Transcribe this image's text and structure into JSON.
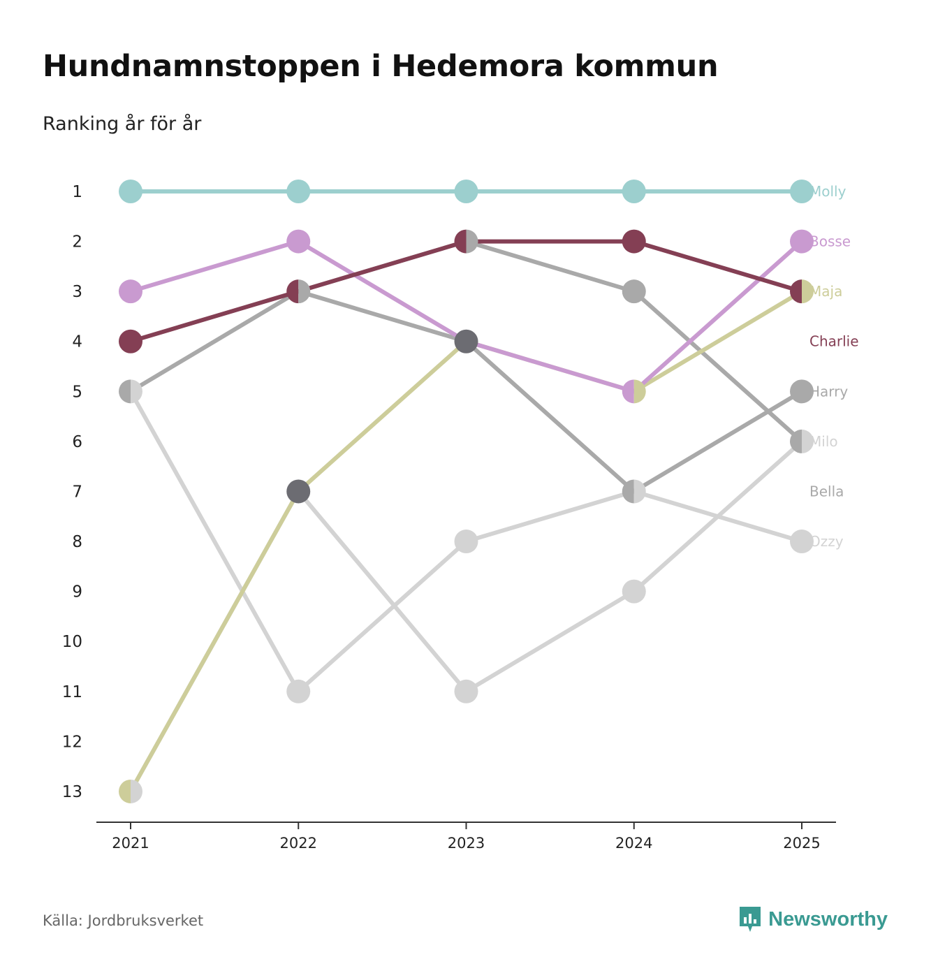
{
  "page": {
    "title": "Hundnamnstoppen i Hedemora kommun",
    "subtitle": "Ranking år för år",
    "source": "Källa: Jordbruksverket",
    "brand": "Newsworthy",
    "brand_icon": "newsworthy-logo-icon",
    "brand_color": "#3a9a92"
  },
  "chart_data": {
    "type": "line",
    "title": "Hundnamnstoppen i Hedemora kommun",
    "subtitle": "Ranking år för år",
    "xlabel": "",
    "ylabel": "",
    "x": [
      2021,
      2022,
      2023,
      2024,
      2025
    ],
    "y_ticks": [
      1,
      2,
      3,
      4,
      5,
      6,
      7,
      8,
      9,
      10,
      11,
      12,
      13
    ],
    "ylim": [
      1,
      13
    ],
    "y_inverted": true,
    "grid": false,
    "series": [
      {
        "name": "Ozzy",
        "color": "#d3d3d3",
        "values": [
          5,
          11,
          8,
          7,
          8
        ]
      },
      {
        "name": "Bella",
        "color": "#d3d3d3",
        "values": [
          13,
          7,
          11,
          9,
          6
        ]
      },
      {
        "name": "Milo",
        "color": "#a9a9a9",
        "values": [
          null,
          3,
          2,
          3,
          6
        ]
      },
      {
        "name": "Harry",
        "color": "#a9a9a9",
        "values": [
          5,
          3,
          4,
          7,
          5
        ]
      },
      {
        "name": "Maja",
        "color": "#cdcd9a",
        "values": [
          13,
          7,
          4,
          5,
          3
        ]
      },
      {
        "name": "Bosse",
        "color": "#c99ad0",
        "values": [
          3,
          2,
          4,
          5,
          2
        ]
      },
      {
        "name": "Charlie",
        "color": "#843f54",
        "values": [
          4,
          3,
          2,
          2,
          3
        ]
      },
      {
        "name": "Molly",
        "color": "#9ccfce",
        "values": [
          1,
          1,
          1,
          1,
          1
        ]
      }
    ],
    "special_markers": [
      {
        "x": 2022,
        "y": 7,
        "color": "#6c6c72"
      },
      {
        "x": 2023,
        "y": 4,
        "color": "#6c6c72"
      }
    ],
    "end_labels": [
      {
        "name": "Molly",
        "rank": 1,
        "color": "#9ccfce"
      },
      {
        "name": "Bosse",
        "rank": 2,
        "color": "#c99ad0"
      },
      {
        "name": "Maja",
        "rank": 3,
        "color": "#cdcd9a"
      },
      {
        "name": "Charlie",
        "rank": 4,
        "color": "#843f54"
      },
      {
        "name": "Harry",
        "rank": 5,
        "color": "#a9a9a9"
      },
      {
        "name": "Milo",
        "rank": 6,
        "color": "#d3d3d3"
      },
      {
        "name": "Bella",
        "rank": 7,
        "color": "#a9a9a9"
      },
      {
        "name": "Ozzy",
        "rank": 8,
        "color": "#d3d3d3"
      }
    ]
  }
}
